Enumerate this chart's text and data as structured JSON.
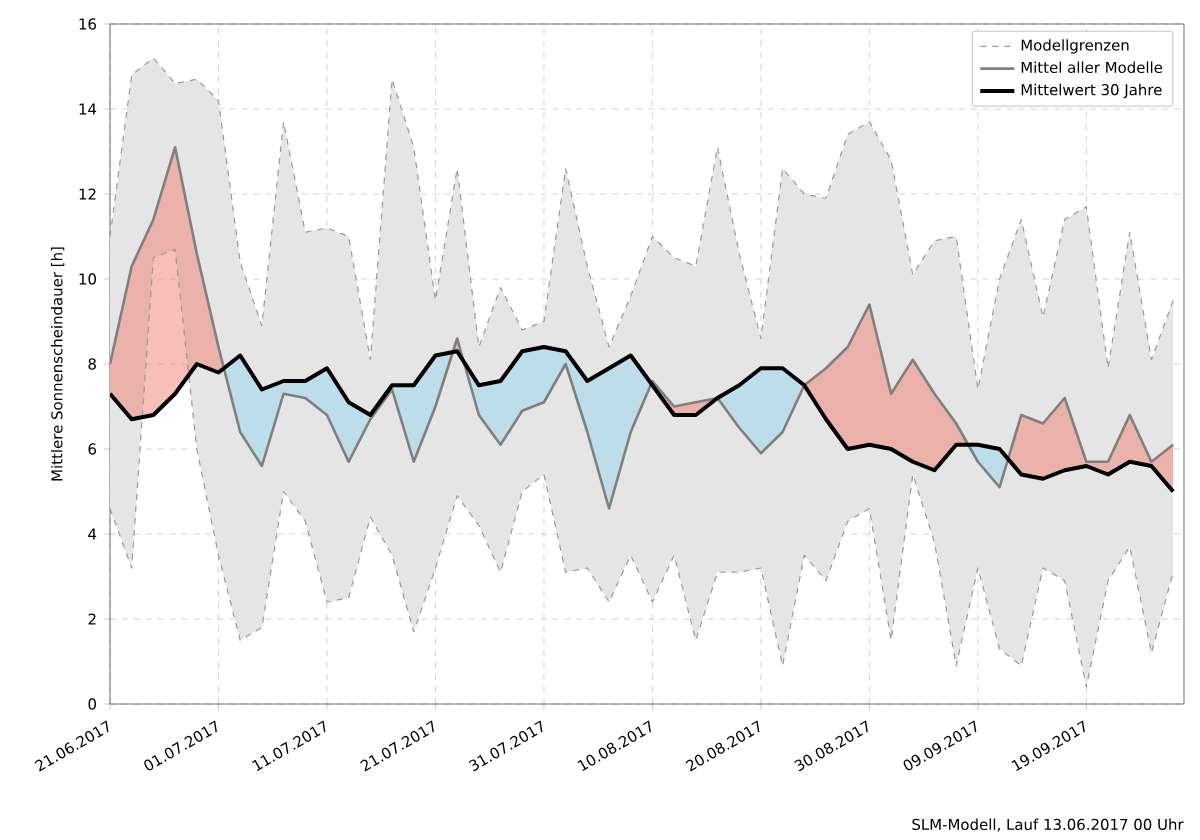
{
  "chart_data": {
    "type": "line",
    "ylabel": "Mittlere Sonnenscheindauer [h]",
    "annotations": [
      "SLM-Modell, Lauf 13.06.2017 00 Uhr"
    ],
    "x": [
      "2017-06-21",
      "2017-06-23",
      "2017-06-25",
      "2017-06-27",
      "2017-06-29",
      "2017-07-01",
      "2017-07-03",
      "2017-07-05",
      "2017-07-07",
      "2017-07-09",
      "2017-07-11",
      "2017-07-13",
      "2017-07-15",
      "2017-07-17",
      "2017-07-19",
      "2017-07-21",
      "2017-07-23",
      "2017-07-25",
      "2017-07-27",
      "2017-07-29",
      "2017-07-31",
      "2017-08-02",
      "2017-08-04",
      "2017-08-06",
      "2017-08-08",
      "2017-08-10",
      "2017-08-12",
      "2017-08-14",
      "2017-08-16",
      "2017-08-18",
      "2017-08-20",
      "2017-08-22",
      "2017-08-24",
      "2017-08-26",
      "2017-08-28",
      "2017-08-30",
      "2017-09-01",
      "2017-09-03",
      "2017-09-05",
      "2017-09-07",
      "2017-09-09",
      "2017-09-11",
      "2017-09-13",
      "2017-09-15",
      "2017-09-17",
      "2017-09-19",
      "2017-09-21",
      "2017-09-23",
      "2017-09-25",
      "2017-09-27"
    ],
    "series": [
      {
        "name": "Modellgrenzen",
        "color": "#999999",
        "line_style": "dashed",
        "values": [
          11.0,
          14.8,
          15.2,
          14.6,
          14.7,
          14.2,
          10.4,
          8.9,
          13.7,
          11.1,
          11.2,
          11.0,
          8.1,
          14.7,
          13.1,
          9.5,
          12.6,
          8.4,
          9.8,
          8.8,
          9.0,
          12.6,
          10.3,
          8.4,
          9.6,
          11.0,
          10.5,
          10.3,
          13.1,
          10.6,
          8.6,
          12.6,
          12.0,
          11.9,
          13.4,
          13.7,
          12.8,
          10.1,
          10.9,
          11.0,
          7.4,
          10.0,
          11.4,
          9.1,
          11.4,
          11.7,
          7.9,
          11.1,
          8.1,
          9.5
        ]
      },
      {
        "color": "#999999",
        "line_style": "dashed",
        "values": [
          4.6,
          3.2,
          10.5,
          10.7,
          6.0,
          3.5,
          1.5,
          1.8,
          5.0,
          4.3,
          2.4,
          2.5,
          4.4,
          3.5,
          1.7,
          3.2,
          4.9,
          4.2,
          3.1,
          5.0,
          5.4,
          3.1,
          3.2,
          2.4,
          3.5,
          2.4,
          3.5,
          1.5,
          3.1,
          3.1,
          3.2,
          0.9,
          3.5,
          2.9,
          4.3,
          4.6,
          1.5,
          5.4,
          3.8,
          0.9,
          3.2,
          1.3,
          0.9,
          3.2,
          2.9,
          0.4,
          2.9,
          3.7,
          1.2,
          3.1
        ]
      },
      {
        "name": "Mittel aller Modelle",
        "color": "#7f7f7f",
        "line_style": "solid",
        "values": [
          8.0,
          10.3,
          11.4,
          13.1,
          10.6,
          8.4,
          6.4,
          5.6,
          7.3,
          7.2,
          6.8,
          5.7,
          6.7,
          7.4,
          5.7,
          7.0,
          8.6,
          6.8,
          6.1,
          6.9,
          7.1,
          8.0,
          6.4,
          4.6,
          6.4,
          7.6,
          7.0,
          7.1,
          7.2,
          6.5,
          5.9,
          6.4,
          7.5,
          7.9,
          8.4,
          9.4,
          7.3,
          8.1,
          7.3,
          6.6,
          5.7,
          5.1,
          6.8,
          6.6,
          7.2,
          5.7,
          5.7,
          6.8,
          5.7,
          6.1
        ],
        "upper": [
          11.0,
          14.8,
          15.2,
          14.6,
          14.7,
          14.2,
          10.4,
          8.9,
          13.7,
          11.1,
          11.2,
          11.0,
          8.1,
          14.7,
          13.1,
          9.5,
          12.6,
          8.4,
          9.8,
          8.8,
          9.0,
          12.6,
          10.3,
          8.4,
          9.6,
          11.0,
          10.5,
          10.3,
          13.1,
          10.6,
          8.6,
          12.6,
          12.0,
          11.9,
          13.4,
          13.7,
          12.8,
          10.1,
          10.9,
          11.0,
          7.4,
          10.0,
          11.4,
          9.1,
          11.4,
          11.7,
          7.9,
          11.1,
          8.1,
          9.5
        ],
        "lower": [
          4.6,
          3.2,
          10.5,
          10.7,
          6.0,
          3.5,
          1.5,
          1.8,
          5.0,
          4.3,
          2.4,
          2.5,
          4.4,
          3.5,
          1.7,
          3.2,
          4.9,
          4.2,
          3.1,
          5.0,
          5.4,
          3.1,
          3.2,
          2.4,
          3.5,
          2.4,
          3.5,
          1.5,
          3.1,
          3.1,
          3.2,
          0.9,
          3.5,
          2.9,
          4.3,
          4.6,
          1.5,
          5.4,
          3.8,
          0.9,
          3.2,
          1.3,
          0.9,
          3.2,
          2.9,
          0.4,
          2.9,
          3.7,
          1.2,
          3.1
        ]
      },
      {
        "name": "Mittelwert 30 Jahre",
        "color": "#000000",
        "line_style": "solid",
        "values": [
          7.3,
          6.7,
          6.8,
          7.3,
          8.0,
          7.8,
          8.2,
          7.4,
          7.6,
          7.6,
          7.9,
          7.1,
          6.8,
          7.5,
          7.5,
          8.2,
          8.3,
          7.5,
          7.6,
          8.3,
          8.4,
          8.3,
          7.6,
          7.9,
          8.2,
          7.5,
          6.8,
          6.8,
          7.2,
          7.5,
          7.9,
          7.9,
          7.5,
          6.7,
          6.0,
          6.1,
          6.0,
          5.7,
          5.5,
          6.1,
          6.1,
          6.0,
          5.4,
          5.3,
          5.5,
          5.6,
          5.4,
          5.7,
          5.6,
          5.0
        ]
      },
      {
        "color": "#f08070",
        "x": [
          "2017-06-21",
          "2017-06-23",
          "2017-06-25",
          "2017-06-27",
          "2017-06-29",
          "2017-07-01",
          "2017-07-01T12:00",
          "2017-07-10",
          "2017-07-22T14:24",
          "2017-07-23",
          "2017-07-23T14:24",
          "2017-08-01",
          "2017-08-09T21:30",
          "2017-08-10",
          "2017-08-12",
          "2017-08-14",
          "2017-08-16",
          "2017-08-20",
          "2017-08-24",
          "2017-08-26",
          "2017-08-28",
          "2017-08-30",
          "2017-09-01",
          "2017-09-03",
          "2017-09-05",
          "2017-09-07",
          "2017-09-08T02:40",
          "2017-09-10",
          "2017-09-11T18:45",
          "2017-09-13",
          "2017-09-15",
          "2017-09-17",
          "2017-09-19",
          "2017-09-21",
          "2017-09-23",
          "2017-09-25",
          "2017-09-27"
        ],
        "values": [
          null,
          null,
          null,
          null,
          null,
          null,
          null,
          null,
          null,
          null,
          null,
          null,
          null,
          null,
          null,
          null,
          null,
          null,
          null,
          null,
          null,
          null,
          null,
          null,
          null,
          null,
          null,
          null,
          null,
          null,
          null,
          null,
          null,
          null,
          null,
          null,
          null
        ],
        "upper": [
          8.0,
          10.3,
          11.4,
          13.1,
          10.6,
          8.4,
          7.9,
          null,
          8.28,
          8.6,
          8.06,
          null,
          7.5,
          7.6,
          7.0,
          7.1,
          7.2,
          null,
          7.5,
          7.9,
          8.4,
          9.4,
          7.3,
          8.1,
          7.3,
          6.6,
          6.1,
          null,
          5.8,
          6.8,
          6.6,
          7.2,
          5.7,
          5.7,
          6.8,
          5.7,
          6.1
        ],
        "lower": [
          7.3,
          6.7,
          6.8,
          7.3,
          8.0,
          7.8,
          7.9,
          null,
          8.28,
          8.3,
          8.06,
          null,
          7.5,
          7.5,
          6.8,
          6.8,
          7.2,
          null,
          7.5,
          6.7,
          6.0,
          6.1,
          6.0,
          5.7,
          5.5,
          6.1,
          6.1,
          null,
          5.8,
          5.4,
          5.3,
          5.5,
          5.6,
          5.4,
          5.7,
          5.6,
          5.0
        ]
      },
      {
        "color": "#93d5ed",
        "x": [
          "2017-07-01T12:00",
          "2017-07-03",
          "2017-07-05",
          "2017-07-07",
          "2017-07-09",
          "2017-07-11",
          "2017-07-13",
          "2017-07-15",
          "2017-07-17",
          "2017-07-19",
          "2017-07-21",
          "2017-07-22T14:24",
          "2017-07-23",
          "2017-07-23T14:24",
          "2017-07-25",
          "2017-07-27",
          "2017-07-29",
          "2017-07-31",
          "2017-08-02",
          "2017-08-04",
          "2017-08-06",
          "2017-08-08",
          "2017-08-09T21:30",
          "2017-08-13",
          "2017-08-16",
          "2017-08-18",
          "2017-08-20",
          "2017-08-22",
          "2017-08-24",
          "2017-09-01",
          "2017-09-08T02:40",
          "2017-09-09",
          "2017-09-11",
          "2017-09-11T18:45"
        ],
        "values": [
          null,
          null,
          null,
          null,
          null,
          null,
          null,
          null,
          null,
          null,
          null,
          null,
          null,
          null,
          null,
          null,
          null,
          null,
          null,
          null,
          null,
          null,
          null,
          null,
          null,
          null,
          null,
          null,
          null,
          null,
          null,
          null,
          null,
          null
        ],
        "upper": [
          7.9,
          8.2,
          7.4,
          7.6,
          7.6,
          7.9,
          7.1,
          6.8,
          7.5,
          7.5,
          8.2,
          8.28,
          null,
          8.06,
          7.5,
          7.6,
          8.3,
          8.4,
          8.3,
          7.6,
          7.9,
          8.2,
          7.5,
          null,
          7.2,
          7.5,
          7.9,
          7.9,
          7.5,
          null,
          6.1,
          6.1,
          6.0,
          5.8
        ],
        "lower": [
          7.9,
          6.4,
          5.6,
          7.3,
          7.2,
          6.8,
          5.7,
          6.7,
          7.4,
          5.7,
          7.0,
          8.28,
          null,
          8.06,
          6.8,
          6.1,
          6.9,
          7.1,
          8.0,
          6.4,
          4.6,
          6.4,
          7.5,
          null,
          7.2,
          6.5,
          5.9,
          6.4,
          7.5,
          null,
          6.1,
          5.7,
          5.1,
          5.8
        ]
      }
    ],
    "xlim": [
      "2017-06-21",
      "2017-09-28"
    ],
    "xticks": [
      {
        "value": "2017-06-21",
        "label": "21.06.2017"
      },
      {
        "value": "2017-07-01",
        "label": "01.07.2017"
      },
      {
        "value": "2017-07-11",
        "label": "11.07.2017"
      },
      {
        "value": "2017-07-21",
        "label": "21.07.2017"
      },
      {
        "value": "2017-07-31",
        "label": "31.07.2017"
      },
      {
        "value": "2017-08-10",
        "label": "10.08.2017"
      },
      {
        "value": "2017-08-20",
        "label": "20.08.2017"
      },
      {
        "value": "2017-08-30",
        "label": "30.08.2017"
      },
      {
        "value": "2017-09-09",
        "label": "09.09.2017"
      },
      {
        "value": "2017-09-19",
        "label": "19.09.2017"
      }
    ],
    "ylim": [
      0,
      16
    ],
    "yticks": [
      0,
      2,
      4,
      6,
      8,
      10,
      12,
      14,
      16
    ],
    "grid": true,
    "legend": "top right"
  }
}
